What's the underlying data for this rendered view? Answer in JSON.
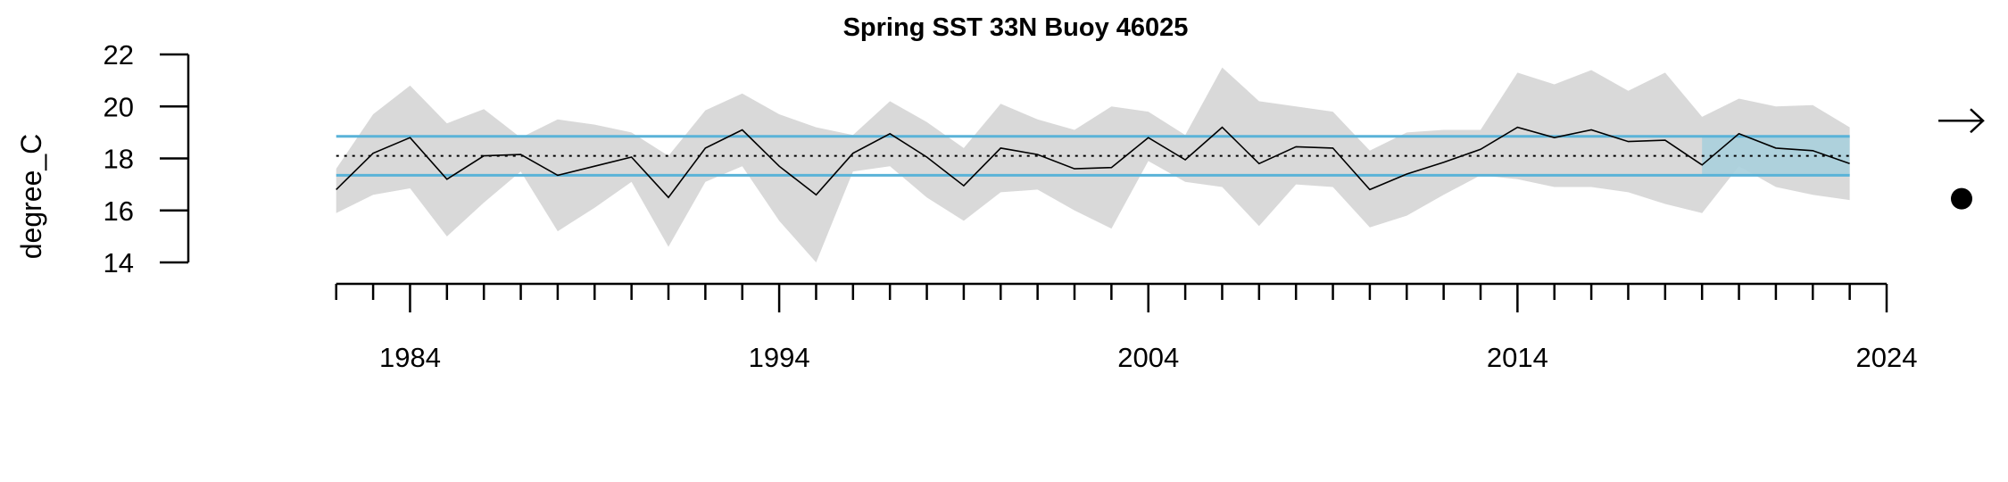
{
  "chart_data": {
    "type": "line",
    "title": "Spring SST 33N Buoy 46025",
    "xlabel": "",
    "ylabel": "degree_C",
    "xlim": [
      1980,
      2024
    ],
    "ylim": [
      14,
      22
    ],
    "x_ticks_labeled": [
      "1984",
      "1994",
      "2004",
      "2014",
      "2024"
    ],
    "y_ticks": [
      "14",
      "16",
      "18",
      "20",
      "22"
    ],
    "x_minor_tick_step": 1,
    "series": [
      {
        "x": [
          1982,
          1983,
          1984,
          1985,
          1986,
          1987,
          1988,
          1989,
          1990,
          1991,
          1992,
          1993,
          1994,
          1995,
          1996,
          1997,
          1998,
          1999,
          2000,
          2001,
          2002,
          2003,
          2004,
          2005,
          2006,
          2007,
          2008,
          2009,
          2010,
          2011,
          2012,
          2013,
          2014,
          2015,
          2016,
          2017,
          2018,
          2019,
          2020,
          2021,
          2022,
          2023
        ],
        "values": [
          16.8,
          18.2,
          18.8,
          17.2,
          18.1,
          18.15,
          17.35,
          17.7,
          18.05,
          16.5,
          18.4,
          19.1,
          17.7,
          16.6,
          18.2,
          18.95,
          18.05,
          16.95,
          18.4,
          18.15,
          17.6,
          17.65,
          18.8,
          17.95,
          19.2,
          17.8,
          18.45,
          18.4,
          16.8,
          17.4,
          17.85,
          18.35,
          19.2,
          18.8,
          19.1,
          18.65,
          18.7,
          17.75,
          18.95,
          18.4,
          18.3,
          17.8
        ]
      }
    ],
    "uncertainty_band": {
      "lower": [
        15.9,
        16.6,
        16.85,
        15.0,
        16.3,
        17.5,
        15.2,
        16.1,
        17.1,
        14.6,
        17.1,
        17.7,
        15.6,
        14.0,
        17.5,
        17.7,
        16.5,
        15.6,
        16.7,
        16.8,
        16.0,
        15.3,
        17.9,
        17.1,
        16.9,
        15.4,
        17.0,
        16.9,
        15.35,
        15.8,
        16.6,
        17.35,
        17.2,
        16.9,
        16.9,
        16.7,
        16.25,
        15.9,
        17.7,
        16.9,
        16.6,
        16.4
      ],
      "upper": [
        17.6,
        19.7,
        20.8,
        19.35,
        19.9,
        18.8,
        19.5,
        19.3,
        19.0,
        18.1,
        19.85,
        20.5,
        19.7,
        19.2,
        18.9,
        20.2,
        19.4,
        18.4,
        20.1,
        19.5,
        19.1,
        20.0,
        19.8,
        18.9,
        21.5,
        20.2,
        20.0,
        19.8,
        18.3,
        19.0,
        19.1,
        19.1,
        21.3,
        20.85,
        21.4,
        20.6,
        21.3,
        19.6,
        20.3,
        20.0,
        20.05,
        19.2
      ],
      "color": "#d9d9d9"
    },
    "mean_line": {
      "value": 18.1,
      "style": "dotted",
      "color": "#000000"
    },
    "sd_lines": {
      "upper": 18.85,
      "lower": 17.35,
      "color": "#5ab3d8"
    },
    "recent_period_shade": {
      "x_start": 2019,
      "x_end": 2023,
      "color": "#a8cfdc"
    },
    "trend_indicator": "right-arrow",
    "mean_indicator": "filled-circle",
    "grid": false,
    "legend": "none"
  }
}
